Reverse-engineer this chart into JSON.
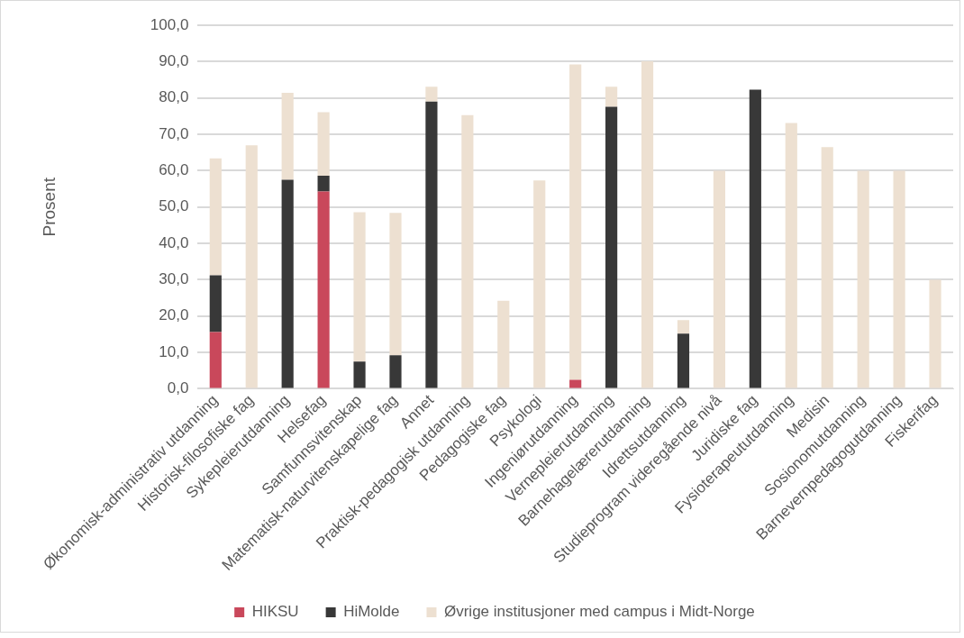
{
  "chart_data": {
    "type": "bar",
    "stacked": true,
    "ylabel": "Prosent",
    "categories": [
      "Økonomisk-administrativ utdanning",
      "Historisk-filosofiske fag",
      "Sykepleierutdanning",
      "Helsefag",
      "Samfunnsvitenskap",
      "Matematisk-naturvitenskapelige fag",
      "Annet",
      "Praktisk-pedagogisk utdanning",
      "Pedagogiske fag",
      "Psykologi",
      "Ingeniørutdanning",
      "Vernepleierutdanning",
      "Barnehagelærerutdanning",
      "Idrettsutdanning",
      "Studieprogram videregående nivå",
      "Juridiske fag",
      "Fysioterapeututdanning",
      "Medisin",
      "Sosionomutdanning",
      "Barnevernpedagogutdanning",
      "Fiskerifag"
    ],
    "series": [
      {
        "name": "HIKSU",
        "color": "#c9485b",
        "values": [
          15.6,
          null,
          null,
          54.3,
          null,
          null,
          null,
          null,
          null,
          null,
          2.5,
          null,
          null,
          null,
          null,
          null,
          null,
          null,
          null,
          null,
          null
        ]
      },
      {
        "name": "HiMolde",
        "color": "#383838",
        "values": [
          15.6,
          null,
          57.5,
          4.3,
          7.5,
          9.2,
          79.0,
          null,
          null,
          null,
          null,
          77.6,
          null,
          15.2,
          null,
          82.3,
          null,
          null,
          null,
          null,
          null
        ]
      },
      {
        "name": "Øvrige institusjoner med campus i Midt-Norge",
        "color": "#ede0d1",
        "values": [
          32.2,
          67.0,
          23.9,
          17.5,
          41.1,
          39.2,
          4.1,
          75.3,
          24.2,
          57.3,
          86.7,
          5.5,
          90.1,
          3.7,
          60.0,
          null,
          73.1,
          66.5,
          60.0,
          60.0,
          30.0
        ]
      }
    ],
    "ylim": [
      0,
      100
    ],
    "yticks": [
      {
        "value": 0,
        "label": "0,0"
      },
      {
        "value": 10,
        "label": "10,0"
      },
      {
        "value": 20,
        "label": "20,0"
      },
      {
        "value": 30,
        "label": "30,0"
      },
      {
        "value": 40,
        "label": "40,0"
      },
      {
        "value": 50,
        "label": "50,0"
      },
      {
        "value": 60,
        "label": "60,0"
      },
      {
        "value": 70,
        "label": "70,0"
      },
      {
        "value": 80,
        "label": "80,0"
      },
      {
        "value": 90,
        "label": "90,0"
      },
      {
        "value": 100,
        "label": "100,0"
      }
    ],
    "grid": "y",
    "legend": "bottom"
  }
}
